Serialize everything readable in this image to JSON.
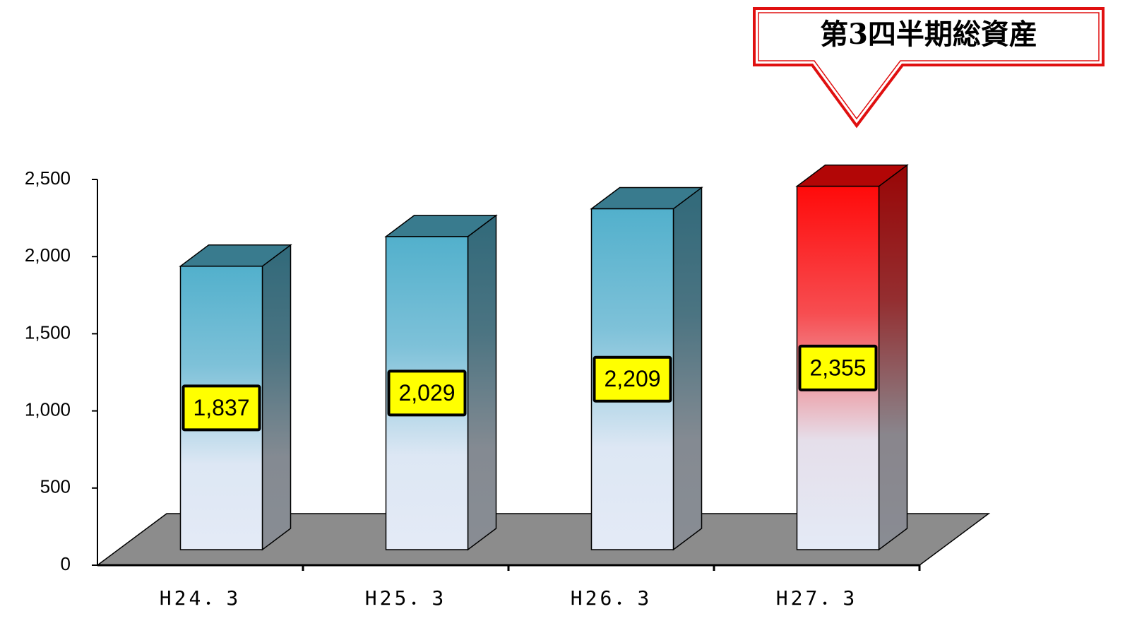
{
  "chart_data": {
    "type": "bar3d",
    "annotation": "第3四半期総資産",
    "categories": [
      "H24．3",
      "H25．3",
      "H26．3",
      "H27．3"
    ],
    "values": [
      1837,
      2029,
      2209,
      2355
    ],
    "value_labels": [
      "1,837",
      "2,029",
      "2,209",
      "2,355"
    ],
    "colors": [
      "#52b0cc",
      "#52b0cc",
      "#52b0cc",
      "#ff0a0a"
    ],
    "ylim": [
      0,
      2500
    ],
    "yticks": [
      0,
      500,
      {
        "value": 1000,
        "label": "1,000"
      },
      {
        "value": 1500,
        "label": "1,500"
      },
      {
        "value": 2000,
        "label": "2,000"
      },
      {
        "value": 2500,
        "label": "2,500"
      }
    ]
  }
}
